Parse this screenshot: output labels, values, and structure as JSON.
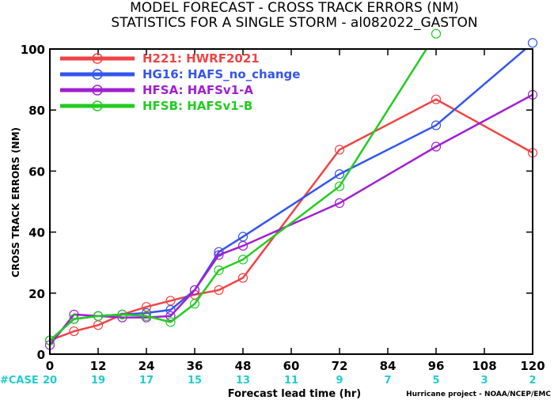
{
  "chart_data": {
    "type": "line",
    "title": "MODEL FORECAST - CROSS TRACK ERRORS (NM)",
    "subtitle": "STATISTICS FOR A SINGLE STORM - al082022_GASTON",
    "xlabel": "Forecast lead time (hr)",
    "ylabel": "CROSS TRACK ERRORS (NM)",
    "xlim": [
      0,
      120
    ],
    "ylim": [
      0,
      100
    ],
    "x_ticks": [
      "0",
      "12",
      "24",
      "36",
      "48",
      "60",
      "72",
      "84",
      "96",
      "108",
      "120"
    ],
    "y_ticks": [
      "0",
      "20",
      "40",
      "60",
      "80",
      "100"
    ],
    "case_label": "#CASE",
    "case_counts": [
      "20",
      "19",
      "17",
      "15",
      "13",
      "11",
      "9",
      "7",
      "5",
      "3",
      "2"
    ],
    "credit": "Hurricane project - NOAA/NCEP/EMC",
    "x": [
      0,
      6,
      12,
      18,
      24,
      30,
      36,
      42,
      48,
      72,
      96,
      120
    ],
    "series": [
      {
        "name": "H221: HWRF2021",
        "color": "#ee4444",
        "values": [
          4.5,
          7.5,
          9.5,
          13,
          15.5,
          17.5,
          19.5,
          21,
          25,
          67,
          83.5,
          66
        ]
      },
      {
        "name": "HG16: HAFS_no_change",
        "color": "#3355ee",
        "values": [
          4.5,
          11.5,
          12.5,
          13,
          13.5,
          14.5,
          21,
          33.5,
          38.5,
          59,
          75,
          102
        ]
      },
      {
        "name": "HFSA: HAFSv1-A",
        "color": "#a020d0",
        "values": [
          3,
          13,
          12.5,
          12,
          12,
          12.5,
          21,
          32.5,
          35.5,
          49.5,
          68,
          85
        ]
      },
      {
        "name": "HFSB: HAFSv1-B",
        "color": "#22cc22",
        "values": [
          4.5,
          11.5,
          12.5,
          13,
          12.5,
          10.5,
          16.5,
          27.5,
          31,
          55,
          105,
          null
        ]
      }
    ]
  }
}
